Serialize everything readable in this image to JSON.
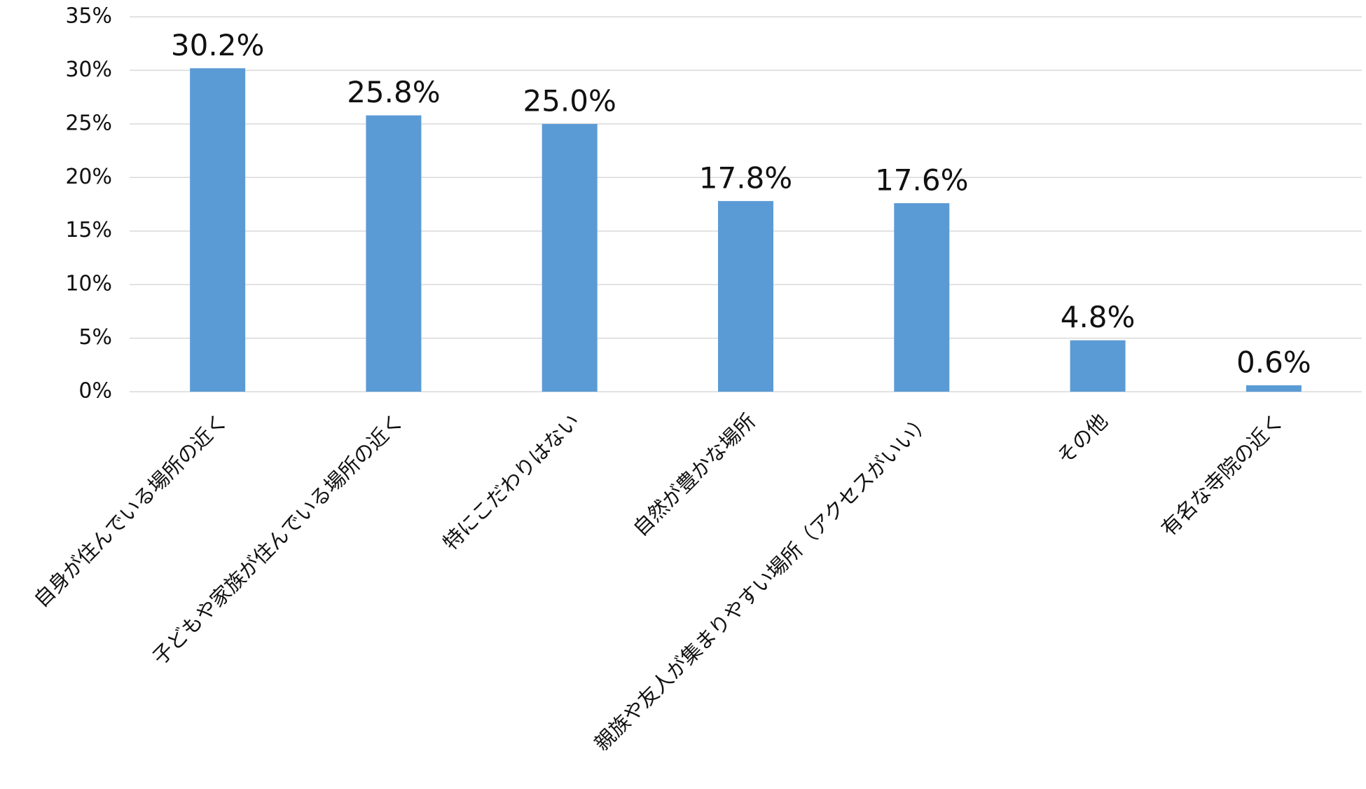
{
  "chart_data": {
    "type": "bar",
    "categories": [
      "自身が住んでいる場所の近く",
      "子どもや家族が住んでいる場所の近く",
      "特にこだわりはない",
      "自然が豊かな場所",
      "親族や友人が集まりやすい場所（アクセスがいい）",
      "その他",
      "有名な寺院の近く"
    ],
    "values": [
      30.2,
      25.8,
      25.0,
      17.8,
      17.6,
      4.8,
      0.6
    ],
    "value_labels": [
      "30.2%",
      "25.8%",
      "25.0%",
      "17.8%",
      "17.6%",
      "4.8%",
      "0.6%"
    ],
    "color": "#5b9bd5",
    "ylim": [
      0,
      35
    ],
    "yticks": [
      {
        "value": 0,
        "label": "0%"
      },
      {
        "value": 5,
        "label": "5%"
      },
      {
        "value": 10,
        "label": "10%"
      },
      {
        "value": 15,
        "label": "15%"
      },
      {
        "value": 20,
        "label": "20%"
      },
      {
        "value": 25,
        "label": "25%"
      },
      {
        "value": 30,
        "label": "30%"
      },
      {
        "value": 35,
        "label": "35%"
      }
    ],
    "grid": true
  }
}
